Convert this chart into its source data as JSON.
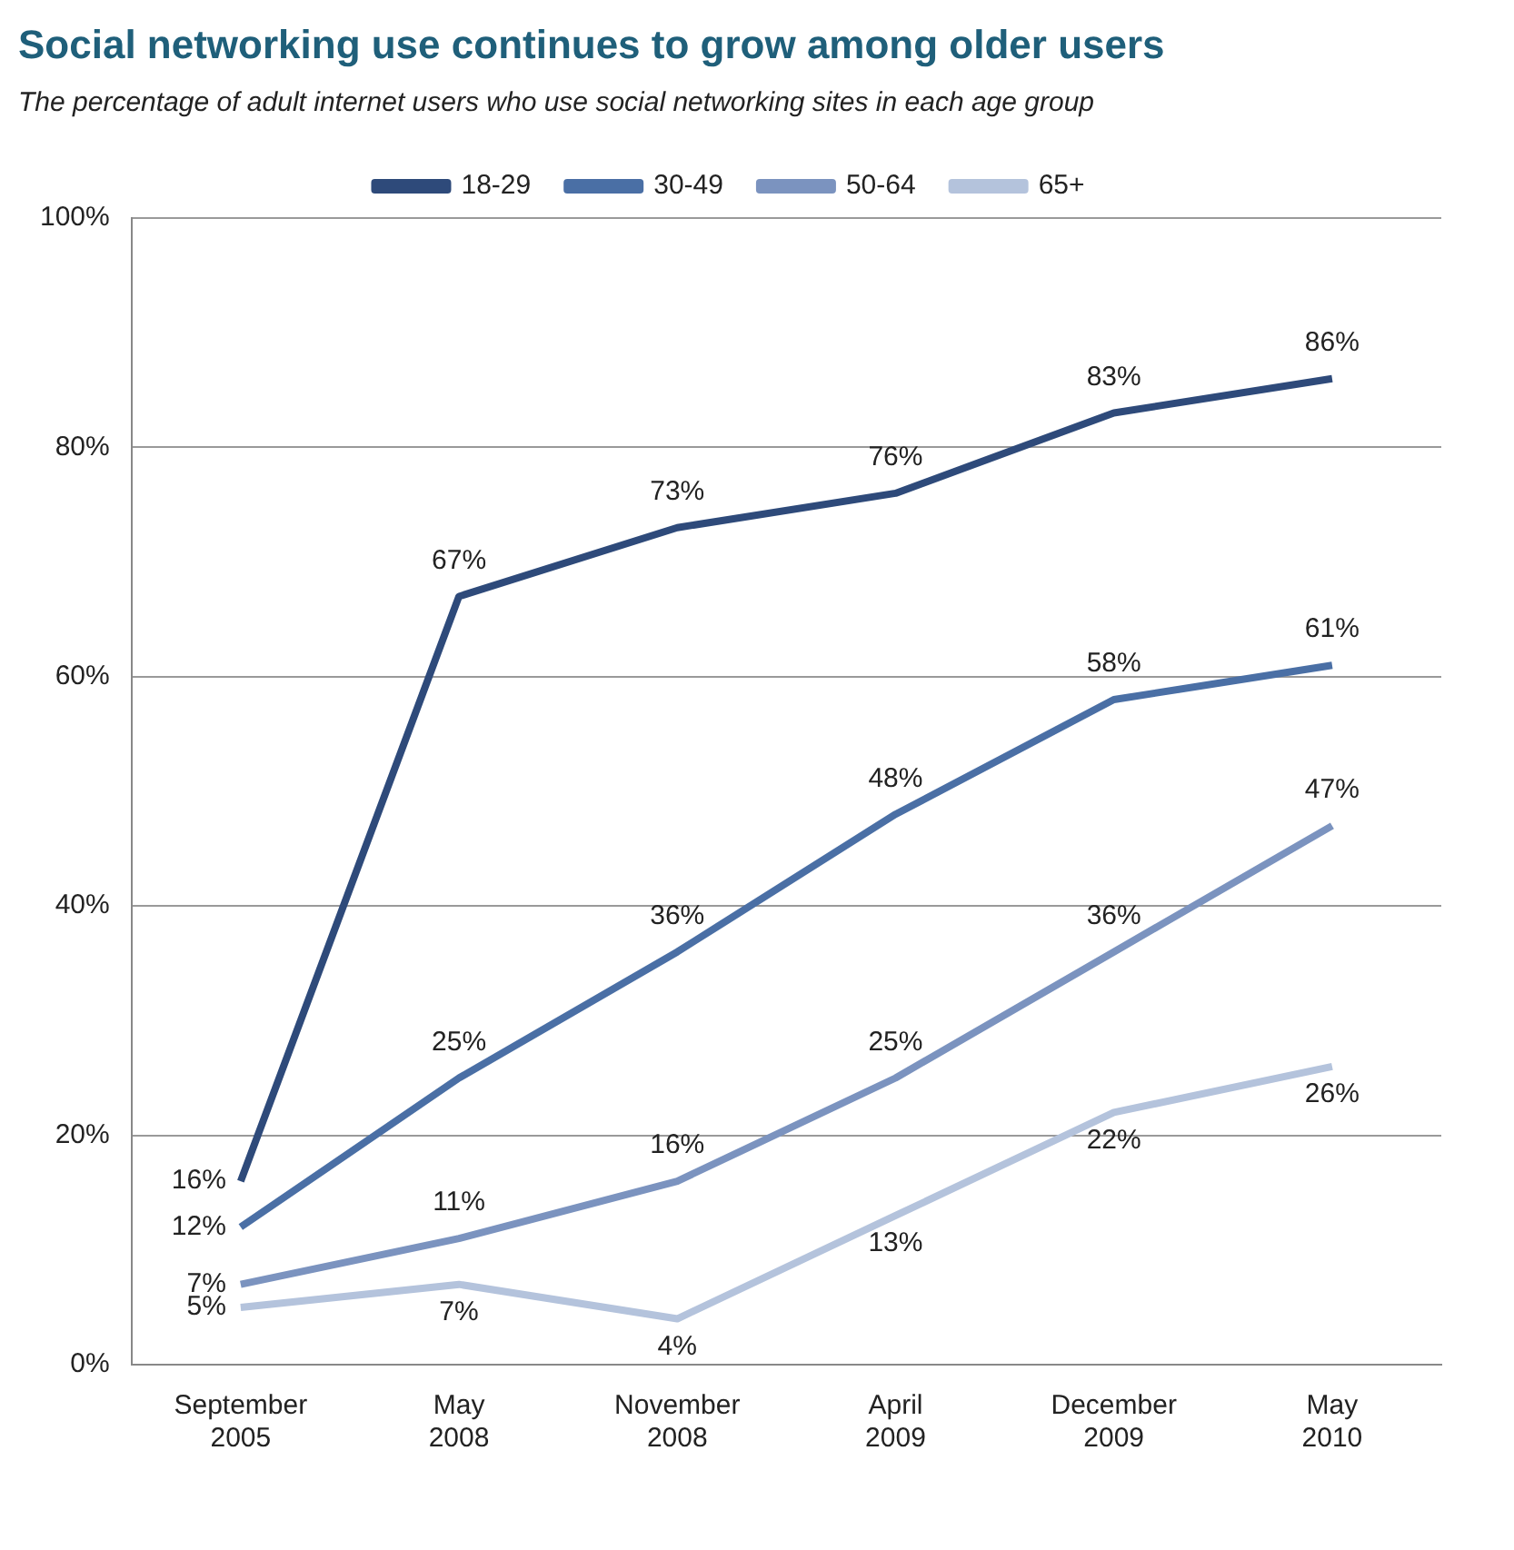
{
  "chart_data": {
    "type": "line",
    "title": "Social networking use continues to grow among older users",
    "subtitle": "The percentage of adult internet users who use social networking sites in each age group",
    "categories": [
      "September 2005",
      "May 2008",
      "November 2008",
      "April 2009",
      "December 2009",
      "May 2010"
    ],
    "series": [
      {
        "name": "18-29",
        "color": "#2e4a7a",
        "values": [
          16,
          67,
          73,
          76,
          83,
          86
        ],
        "value_labels": [
          "16%",
          "67%",
          "73%",
          "76%",
          "83%",
          "86%"
        ]
      },
      {
        "name": "30-49",
        "color": "#4a6fa5",
        "values": [
          12,
          25,
          36,
          48,
          58,
          61
        ],
        "value_labels": [
          "12%",
          "25%",
          "36%",
          "48%",
          "58%",
          "61%"
        ]
      },
      {
        "name": "50-64",
        "color": "#7b93bf",
        "values": [
          7,
          11,
          16,
          25,
          36,
          47
        ],
        "value_labels": [
          "7%",
          "11%",
          "16%",
          "25%",
          "36%",
          "47%"
        ]
      },
      {
        "name": "65+",
        "color": "#b4c3dc",
        "values": [
          5,
          7,
          4,
          13,
          22,
          26
        ],
        "value_labels": [
          "5%",
          "7%",
          "4%",
          "13%",
          "22%",
          "26%"
        ]
      }
    ],
    "ylim": [
      0,
      100
    ],
    "yticks": [
      {
        "value": 0,
        "label": "0%"
      },
      {
        "value": 20,
        "label": "20%"
      },
      {
        "value": 40,
        "label": "40%"
      },
      {
        "value": 60,
        "label": "60%"
      },
      {
        "value": 80,
        "label": "80%"
      },
      {
        "value": 100,
        "label": "100%"
      }
    ],
    "grid": "y",
    "legend": "top",
    "marker": "none",
    "line_style": "solid"
  }
}
